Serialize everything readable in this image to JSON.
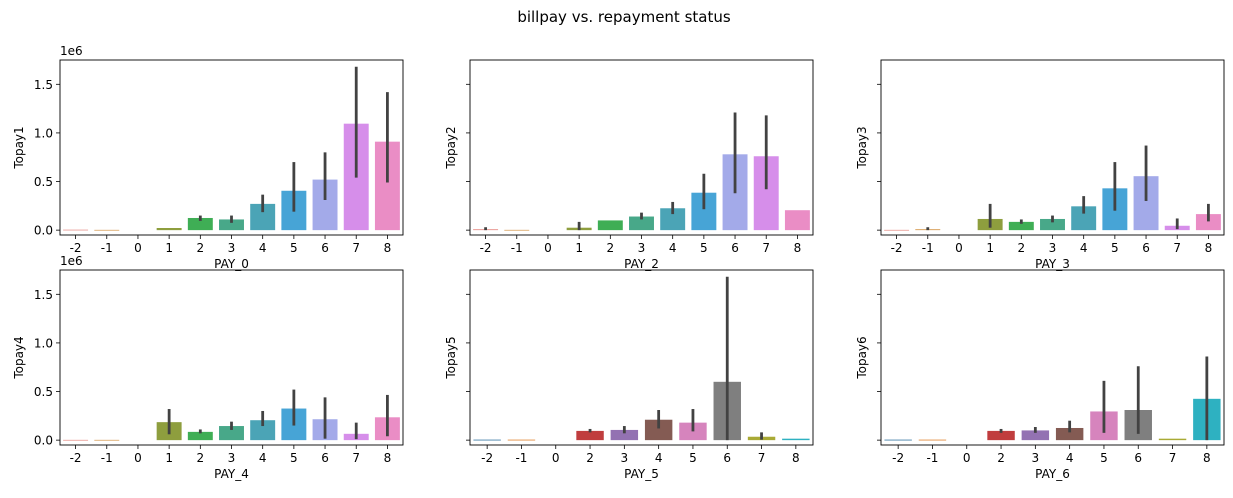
{
  "figure": {
    "suptitle": "billpay vs. repayment status"
  },
  "chart_data": [
    {
      "type": "bar",
      "xlabel": "PAY_0",
      "ylabel": "Topay1",
      "categories": [
        "-2",
        "-1",
        "0",
        "1",
        "2",
        "3",
        "4",
        "5",
        "6",
        "7",
        "8"
      ],
      "values": [
        5000,
        3000,
        null,
        22000,
        125000,
        110000,
        270000,
        405000,
        520000,
        1095000,
        910000
      ],
      "err_low": [
        null,
        null,
        null,
        null,
        95000,
        75000,
        185000,
        190000,
        310000,
        540000,
        490000
      ],
      "err_high": [
        null,
        null,
        null,
        null,
        150000,
        150000,
        365000,
        700000,
        800000,
        1680000,
        1420000
      ],
      "colors": [
        "#e8968f",
        "#d9a05b",
        "#c5ae4b",
        "#8e9e3e",
        "#3fae55",
        "#48a889",
        "#4ba4b6",
        "#47a4d6",
        "#a3aae9",
        "#d68eea",
        "#ea8dc5"
      ],
      "ylim": [
        -50000,
        1750000
      ],
      "yticks": [
        0,
        500000,
        1000000,
        1500000
      ],
      "yticklabels": [
        "0.0",
        "0.5",
        "1.0",
        "1.5"
      ],
      "offset_label": "1e6",
      "show_yticklabels": true
    },
    {
      "type": "bar",
      "xlabel": "PAY_2",
      "ylabel": "Topay2",
      "categories": [
        "-2",
        "-1",
        "0",
        "1",
        "2",
        "3",
        "4",
        "5",
        "6",
        "7",
        "8"
      ],
      "values": [
        10000,
        3000,
        null,
        25000,
        100000,
        140000,
        225000,
        385000,
        780000,
        760000,
        205000
      ],
      "err_low": [
        0,
        null,
        null,
        0,
        null,
        110000,
        165000,
        215000,
        380000,
        420000,
        null
      ],
      "err_high": [
        30000,
        null,
        null,
        85000,
        null,
        180000,
        290000,
        580000,
        1210000,
        1180000,
        null
      ],
      "colors": [
        "#e8968f",
        "#d9a05b",
        "#c5ae4b",
        "#8e9e3e",
        "#3fae55",
        "#48a889",
        "#4ba4b6",
        "#47a4d6",
        "#a3aae9",
        "#d68eea",
        "#ea8dc5"
      ],
      "ylim": [
        -50000,
        1750000
      ],
      "yticks": [
        0,
        500000,
        1000000,
        1500000
      ],
      "yticklabels": [
        "",
        "",
        "",
        ""
      ],
      "offset_label": "",
      "show_yticklabels": false
    },
    {
      "type": "bar",
      "xlabel": "PAY_3",
      "ylabel": "Topay3",
      "categories": [
        "-2",
        "-1",
        "0",
        "1",
        "2",
        "3",
        "4",
        "5",
        "6",
        "7",
        "8"
      ],
      "values": [
        3000,
        10000,
        null,
        115000,
        85000,
        115000,
        245000,
        430000,
        555000,
        45000,
        165000
      ],
      "err_low": [
        null,
        0,
        null,
        25000,
        65000,
        80000,
        170000,
        200000,
        300000,
        10000,
        90000
      ],
      "err_high": [
        null,
        30000,
        null,
        270000,
        110000,
        150000,
        350000,
        700000,
        870000,
        120000,
        270000
      ],
      "colors": [
        "#e8968f",
        "#d9a05b",
        "#c5ae4b",
        "#8e9e3e",
        "#3fae55",
        "#48a889",
        "#4ba4b6",
        "#47a4d6",
        "#a3aae9",
        "#d68eea",
        "#ea8dc5"
      ],
      "ylim": [
        -50000,
        1750000
      ],
      "yticks": [
        0,
        500000,
        1000000,
        1500000
      ],
      "yticklabels": [
        "",
        "",
        "",
        ""
      ],
      "offset_label": "",
      "show_yticklabels": false
    },
    {
      "type": "bar",
      "xlabel": "PAY_4",
      "ylabel": "Topay4",
      "categories": [
        "-2",
        "-1",
        "0",
        "1",
        "2",
        "3",
        "4",
        "5",
        "6",
        "7",
        "8"
      ],
      "values": [
        3000,
        3000,
        null,
        185000,
        85000,
        145000,
        205000,
        325000,
        215000,
        65000,
        235000
      ],
      "err_low": [
        null,
        null,
        null,
        60000,
        70000,
        105000,
        145000,
        150000,
        15000,
        10000,
        40000
      ],
      "err_high": [
        null,
        null,
        null,
        320000,
        110000,
        190000,
        300000,
        520000,
        440000,
        180000,
        465000
      ],
      "colors": [
        "#e8968f",
        "#d9a05b",
        "#c5ae4b",
        "#8e9e3e",
        "#3fae55",
        "#48a889",
        "#4ba4b6",
        "#47a4d6",
        "#a3aae9",
        "#d68eea",
        "#ea8dc5"
      ],
      "ylim": [
        -50000,
        1750000
      ],
      "yticks": [
        0,
        500000,
        1000000,
        1500000
      ],
      "yticklabels": [
        "0.0",
        "0.5",
        "1.0",
        "1.5"
      ],
      "offset_label": "1e6",
      "show_yticklabels": true
    },
    {
      "type": "bar",
      "xlabel": "PAY_5",
      "ylabel": "Topay5",
      "categories": [
        "-2",
        "-1",
        "0",
        "2",
        "3",
        "4",
        "5",
        "6",
        "7",
        "8"
      ],
      "values": [
        5000,
        5000,
        null,
        95000,
        105000,
        210000,
        180000,
        600000,
        35000,
        15000
      ],
      "err_low": [
        null,
        null,
        null,
        80000,
        70000,
        120000,
        90000,
        0,
        5000,
        null
      ],
      "err_high": [
        null,
        null,
        null,
        115000,
        145000,
        310000,
        320000,
        1680000,
        80000,
        null
      ],
      "colors": [
        "#3274a1",
        "#e1812c",
        "#3a923a",
        "#c03d3e",
        "#9372b2",
        "#845b53",
        "#d684bd",
        "#7f7f7f",
        "#a9aa35",
        "#2eb1c1"
      ],
      "ylim": [
        -50000,
        1750000
      ],
      "yticks": [
        0,
        500000,
        1000000,
        1500000
      ],
      "yticklabels": [
        "",
        "",
        "",
        ""
      ],
      "offset_label": "",
      "show_yticklabels": false
    },
    {
      "type": "bar",
      "xlabel": "PAY_6",
      "ylabel": "Topay6",
      "categories": [
        "-2",
        "-1",
        "0",
        "2",
        "3",
        "4",
        "5",
        "6",
        "7",
        "8"
      ],
      "values": [
        5000,
        5000,
        null,
        95000,
        100000,
        125000,
        295000,
        310000,
        15000,
        425000
      ],
      "err_low": [
        null,
        null,
        null,
        75000,
        75000,
        80000,
        75000,
        65000,
        null,
        0
      ],
      "err_high": [
        null,
        null,
        null,
        115000,
        135000,
        200000,
        610000,
        760000,
        null,
        860000
      ],
      "colors": [
        "#3274a1",
        "#e1812c",
        "#3a923a",
        "#c03d3e",
        "#9372b2",
        "#845b53",
        "#d684bd",
        "#7f7f7f",
        "#a9aa35",
        "#2eb1c1"
      ],
      "ylim": [
        -50000,
        1750000
      ],
      "yticks": [
        0,
        500000,
        1000000,
        1500000
      ],
      "yticklabels": [
        "",
        "",
        "",
        ""
      ],
      "offset_label": "",
      "show_yticklabels": false
    }
  ]
}
